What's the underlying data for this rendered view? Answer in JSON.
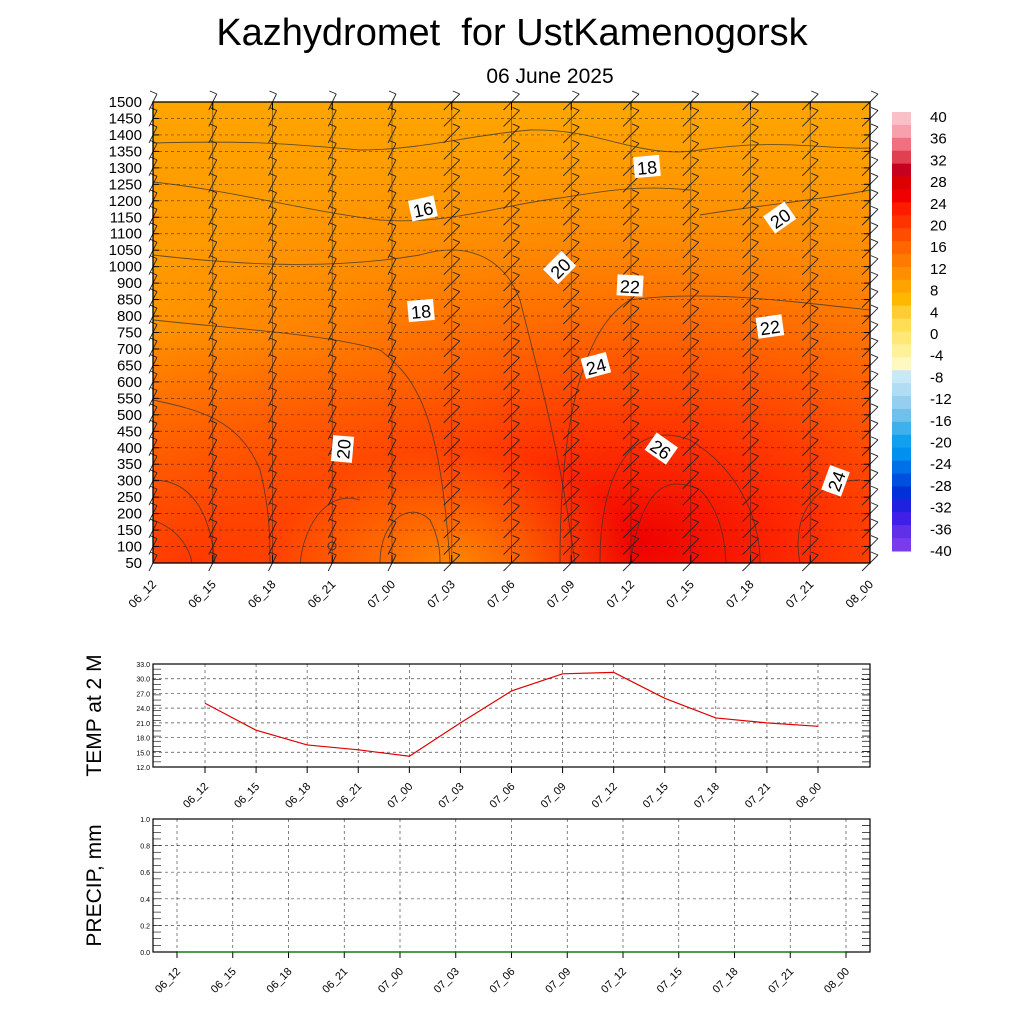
{
  "header": {
    "title": "Kazhydromet  for UstKamenogorsk",
    "subtitle": "06 June 2025"
  },
  "chart_data": [
    {
      "type": "heatmap",
      "ylim": [
        50,
        1500
      ],
      "yticks": [
        1500,
        1450,
        1400,
        1350,
        1300,
        1250,
        1200,
        1150,
        1100,
        1050,
        1000,
        900,
        850,
        800,
        750,
        700,
        650,
        600,
        550,
        500,
        450,
        400,
        350,
        300,
        250,
        200,
        150,
        100,
        50
      ],
      "xticks": [
        "06_12",
        "06_15",
        "06_18",
        "06_21",
        "07_00",
        "07_03",
        "07_06",
        "07_09",
        "07_12",
        "07_15",
        "07_18",
        "07_21",
        "08_00"
      ],
      "colorbar": {
        "labels": [
          "40",
          "36",
          "32",
          "28",
          "24",
          "20",
          "16",
          "12",
          "8",
          "4",
          "0",
          "-4",
          "-8",
          "-12",
          "-16",
          "-20",
          "-24",
          "-28",
          "-32",
          "-36",
          "-40"
        ]
      },
      "contour_labels": [
        "16",
        "18",
        "18",
        "20",
        "20",
        "20",
        "22",
        "22",
        "24",
        "24",
        "26",
        "20"
      ],
      "grid": true
    },
    {
      "type": "line",
      "ylabel": "TEMP at 2 M",
      "ylim": [
        12.0,
        33.0
      ],
      "yticks": [
        "33.0",
        "30.0",
        "27.0",
        "24.0",
        "21.0",
        "18.0",
        "15.0",
        "12.0"
      ],
      "x": [
        "06_12",
        "06_15",
        "06_18",
        "06_21",
        "07_00",
        "07_03",
        "07_06",
        "07_09",
        "07_12",
        "07_15",
        "07_18",
        "07_21",
        "08_00"
      ],
      "values": [
        25.0,
        19.5,
        16.5,
        15.5,
        14.2,
        21.0,
        27.5,
        31.0,
        31.3,
        26.0,
        22.0,
        21.0,
        20.3
      ],
      "color": "#e00000",
      "grid": true
    },
    {
      "type": "line",
      "ylabel": "PRECIP, mm",
      "ylim": [
        0.0,
        1.0
      ],
      "yticks": [
        "1.0",
        "0.8",
        "0.6",
        "0.4",
        "0.2",
        "0.0"
      ],
      "x": [
        "06_12",
        "06_15",
        "06_18",
        "06_21",
        "07_00",
        "07_03",
        "07_06",
        "07_09",
        "07_12",
        "07_15",
        "07_18",
        "07_21",
        "08_00"
      ],
      "values": [
        0,
        0,
        0,
        0,
        0,
        0,
        0,
        0,
        0,
        0,
        0,
        0,
        0
      ],
      "color": "#008000",
      "grid": true
    }
  ]
}
